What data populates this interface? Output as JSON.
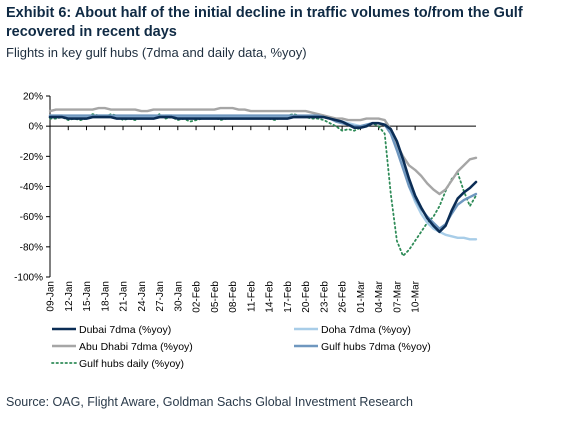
{
  "header": {
    "title": "Exhibit 6: About half of the initial decline in traffic volumes to/from the Gulf recovered in recent days",
    "subtitle": "Flights in key gulf hubs (7dma and daily data, %yoy)"
  },
  "footer": {
    "source": "Source: OAG, Flight Aware, Goldman Sachs Global Investment Research"
  },
  "colors": {
    "dubai": "#0b2d55",
    "doha": "#a8cde8",
    "abu_dhabi": "#a6a6a6",
    "gulf_hubs": "#6f97bf",
    "gulf_daily": "#2e8b57"
  },
  "chart_data": {
    "type": "line",
    "title": "",
    "xlabel": "",
    "ylabel": "",
    "ylim": [
      -100,
      20
    ],
    "yticks": [
      20,
      0,
      -20,
      -40,
      -60,
      -80,
      -100
    ],
    "ytick_labels": [
      "20%",
      "0%",
      "-20%",
      "-40%",
      "-60%",
      "-80%",
      "-100%"
    ],
    "x_tick_labels": [
      "09-Jan",
      "12-Jan",
      "15-Jan",
      "18-Jan",
      "21-Jan",
      "24-Jan",
      "27-Jan",
      "30-Jan",
      "02-Feb",
      "05-Feb",
      "08-Feb",
      "11-Feb",
      "14-Feb",
      "17-Feb",
      "20-Feb",
      "23-Feb",
      "26-Feb",
      "01-Mar",
      "04-Mar",
      "07-Mar",
      "10-Mar"
    ],
    "legend_position": "bottom",
    "grid": false,
    "series": [
      {
        "name": "Dubai 7dma (%yoy)",
        "style": "solid",
        "values": [
          6,
          6,
          6,
          5,
          5,
          5,
          5,
          6,
          6,
          6,
          6,
          5,
          5,
          5,
          5,
          5,
          5,
          5,
          6,
          6,
          6,
          5,
          5,
          5,
          5,
          5,
          5,
          5,
          5,
          5,
          5,
          5,
          5,
          5,
          5,
          5,
          5,
          5,
          5,
          5,
          6,
          6,
          6,
          6,
          6,
          6,
          5,
          4,
          3,
          1,
          -1,
          -1,
          0,
          2,
          2,
          1,
          -2,
          -10,
          -22,
          -35,
          -46,
          -54,
          -61,
          -66,
          -70,
          -66,
          -56,
          -48,
          -44,
          -41,
          -37
        ]
      },
      {
        "name": "Doha 7dma (%yoy)",
        "style": "solid",
        "values": [
          7,
          7,
          7,
          6,
          6,
          6,
          6,
          6,
          7,
          7,
          7,
          6,
          6,
          6,
          6,
          6,
          6,
          6,
          6,
          7,
          7,
          6,
          6,
          6,
          6,
          6,
          6,
          6,
          6,
          6,
          6,
          6,
          6,
          6,
          6,
          6,
          6,
          6,
          6,
          6,
          6,
          6,
          6,
          7,
          7,
          6,
          5,
          4,
          3,
          2,
          1,
          0,
          1,
          2,
          2,
          1,
          -4,
          -14,
          -27,
          -40,
          -50,
          -58,
          -64,
          -68,
          -70,
          -72,
          -73,
          -74,
          -74,
          -75,
          -75
        ]
      },
      {
        "name": "Abu Dhabi 7dma (%yoy)",
        "style": "solid",
        "values": [
          10,
          11,
          11,
          11,
          11,
          11,
          11,
          11,
          12,
          12,
          11,
          11,
          11,
          11,
          11,
          10,
          10,
          11,
          11,
          11,
          11,
          11,
          11,
          11,
          11,
          11,
          11,
          11,
          12,
          12,
          12,
          11,
          11,
          10,
          10,
          10,
          10,
          10,
          10,
          10,
          10,
          10,
          10,
          9,
          8,
          7,
          6,
          5,
          5,
          4,
          4,
          4,
          5,
          5,
          5,
          4,
          -2,
          -12,
          -20,
          -26,
          -29,
          -33,
          -38,
          -42,
          -45,
          -42,
          -36,
          -30,
          -26,
          -22,
          -21
        ]
      },
      {
        "name": "Gulf hubs 7dma (%yoy)",
        "style": "solid",
        "values": [
          7,
          7,
          7,
          7,
          7,
          7,
          7,
          7,
          7,
          7,
          7,
          7,
          7,
          7,
          7,
          7,
          7,
          7,
          7,
          7,
          7,
          7,
          7,
          7,
          7,
          7,
          7,
          7,
          7,
          7,
          7,
          7,
          7,
          7,
          7,
          7,
          7,
          7,
          7,
          7,
          7,
          7,
          7,
          7,
          7,
          6,
          5,
          3,
          2,
          1,
          0,
          0,
          1,
          2,
          2,
          1,
          -5,
          -16,
          -28,
          -40,
          -48,
          -55,
          -60,
          -64,
          -68,
          -65,
          -58,
          -52,
          -49,
          -47,
          -45
        ]
      },
      {
        "name": "Gulf hubs daily (%yoy)",
        "style": "dotted",
        "values": [
          5,
          5,
          6,
          4,
          5,
          4,
          5,
          8,
          7,
          6,
          8,
          7,
          4,
          5,
          4,
          6,
          7,
          5,
          8,
          5,
          6,
          4,
          5,
          3,
          4,
          5,
          6,
          6,
          4,
          5,
          6,
          5,
          5,
          6,
          7,
          6,
          5,
          4,
          6,
          7,
          8,
          7,
          6,
          5,
          5,
          4,
          2,
          0,
          -3,
          -2,
          -3,
          -1,
          1,
          2,
          0,
          -5,
          -45,
          -76,
          -86,
          -82,
          -76,
          -70,
          -64,
          -60,
          -53,
          -43,
          -35,
          -31,
          -43,
          -53,
          -46
        ]
      }
    ]
  }
}
